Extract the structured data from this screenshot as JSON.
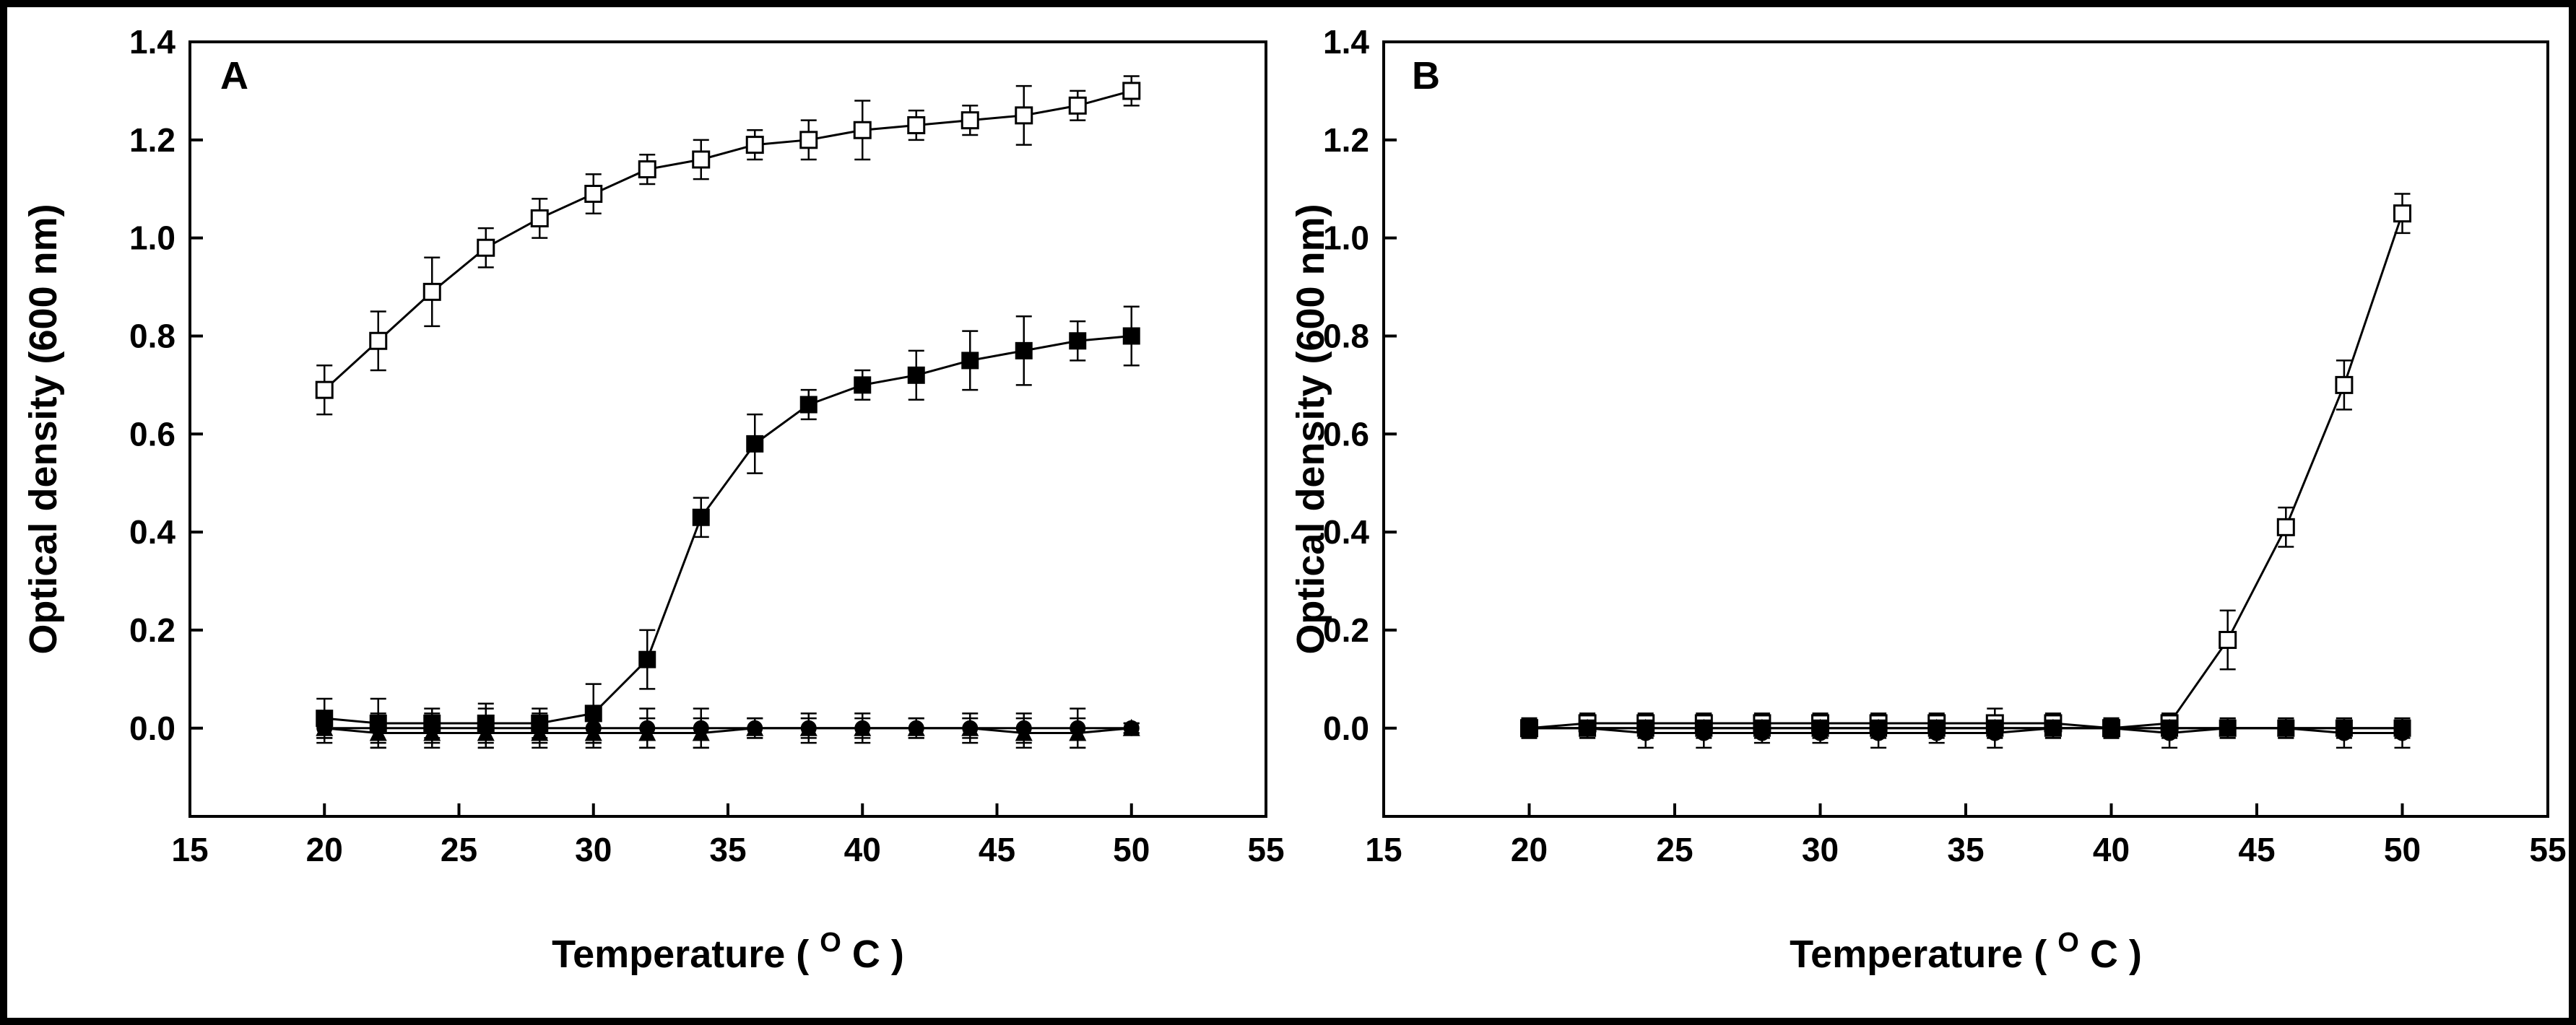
{
  "chart_data": [
    {
      "type": "line",
      "panel_label": "A",
      "xlabel": "Temperature",
      "xlabel_unit_base": "C",
      "xlabel_unit_sup": "O",
      "ylabel": "Optical density (600 nm)",
      "xlim": [
        15,
        55
      ],
      "ylim": [
        -0.18,
        1.4
      ],
      "xticks": [
        15,
        20,
        25,
        30,
        35,
        40,
        45,
        50,
        55
      ],
      "xtick_labels": [
        "15",
        "20",
        "25",
        "30",
        "35",
        "40",
        "45",
        "50",
        "55"
      ],
      "yticks": [
        0.0,
        0.2,
        0.4,
        0.6,
        0.8,
        1.0,
        1.2,
        1.4
      ],
      "ytick_labels": [
        "0.0",
        "0.2",
        "0.4",
        "0.6",
        "0.8",
        "1.0",
        "1.2",
        "1.4"
      ],
      "x": [
        20,
        22,
        24,
        26,
        28,
        30,
        32,
        34,
        36,
        38,
        40,
        42,
        44,
        46,
        48,
        50
      ],
      "series": [
        {
          "name": "open-square",
          "marker": "open-square",
          "values": [
            0.69,
            0.79,
            0.89,
            0.98,
            1.04,
            1.09,
            1.14,
            1.16,
            1.19,
            1.2,
            1.22,
            1.23,
            1.24,
            1.25,
            1.27,
            1.3
          ],
          "errors": [
            0.05,
            0.06,
            0.07,
            0.04,
            0.04,
            0.04,
            0.03,
            0.04,
            0.03,
            0.04,
            0.06,
            0.03,
            0.03,
            0.06,
            0.03,
            0.03
          ]
        },
        {
          "name": "filled-square",
          "marker": "filled-square",
          "values": [
            0.02,
            0.01,
            0.01,
            0.01,
            0.01,
            0.03,
            0.14,
            0.43,
            0.58,
            0.66,
            0.7,
            0.72,
            0.75,
            0.77,
            0.79,
            0.8
          ],
          "errors": [
            0.04,
            0.05,
            0.03,
            0.04,
            0.03,
            0.06,
            0.06,
            0.04,
            0.06,
            0.03,
            0.03,
            0.05,
            0.06,
            0.07,
            0.04,
            0.06
          ]
        },
        {
          "name": "filled-circle",
          "marker": "filled-circle",
          "values": [
            0.0,
            0.0,
            0.0,
            0.0,
            0.0,
            0.0,
            0.0,
            0.0,
            0.0,
            0.0,
            0.0,
            0.0,
            0.0,
            0.0,
            0.0,
            0.0
          ],
          "errors": [
            0.03,
            0.03,
            0.03,
            0.04,
            0.03,
            0.03,
            0.04,
            0.04,
            0.02,
            0.03,
            0.03,
            0.02,
            0.03,
            0.03,
            0.04,
            0.01
          ]
        },
        {
          "name": "filled-triangle",
          "marker": "filled-triangle",
          "values": [
            0.0,
            -0.01,
            -0.01,
            -0.01,
            -0.01,
            -0.01,
            -0.01,
            -0.01,
            0.0,
            0.0,
            0.0,
            0.0,
            0.0,
            -0.01,
            -0.01,
            0.0
          ],
          "errors": [
            0.02,
            0.03,
            0.03,
            0.03,
            0.03,
            0.03,
            0.03,
            0.03,
            0.02,
            0.02,
            0.02,
            0.02,
            0.02,
            0.03,
            0.03,
            0.01
          ]
        }
      ]
    },
    {
      "type": "line",
      "panel_label": "B",
      "xlabel": "Temperature",
      "xlabel_unit_base": "C",
      "xlabel_unit_sup": "O",
      "ylabel": "Optical density (600 nm)",
      "xlim": [
        15,
        55
      ],
      "ylim": [
        -0.18,
        1.4
      ],
      "xticks": [
        15,
        20,
        25,
        30,
        35,
        40,
        45,
        50,
        55
      ],
      "xtick_labels": [
        "15",
        "20",
        "25",
        "30",
        "35",
        "40",
        "45",
        "50",
        "55"
      ],
      "yticks": [
        0.0,
        0.2,
        0.4,
        0.6,
        0.8,
        1.0,
        1.2,
        1.4
      ],
      "ytick_labels": [
        "0.0",
        "0.2",
        "0.4",
        "0.6",
        "0.8",
        "1.0",
        "1.2",
        "1.4"
      ],
      "x": [
        20,
        22,
        24,
        26,
        28,
        30,
        32,
        34,
        36,
        38,
        40,
        42,
        44,
        46,
        48,
        50
      ],
      "series": [
        {
          "name": "open-square",
          "marker": "open-square",
          "values": [
            0.0,
            0.01,
            0.01,
            0.01,
            0.01,
            0.01,
            0.01,
            0.01,
            0.01,
            0.01,
            0.0,
            0.01,
            0.18,
            0.41,
            0.7,
            1.05
          ],
          "errors": [
            0.02,
            0.02,
            0.02,
            0.02,
            0.02,
            0.02,
            0.02,
            0.02,
            0.03,
            0.02,
            0.02,
            0.02,
            0.06,
            0.04,
            0.05,
            0.04
          ]
        },
        {
          "name": "filled-square",
          "marker": "filled-square",
          "values": [
            0.0,
            0.0,
            0.0,
            0.0,
            0.0,
            0.0,
            0.0,
            0.0,
            0.0,
            0.0,
            0.0,
            0.0,
            0.0,
            0.0,
            0.0,
            0.0
          ],
          "errors": [
            0.02,
            0.02,
            0.02,
            0.02,
            0.02,
            0.02,
            0.02,
            0.02,
            0.02,
            0.02,
            0.02,
            0.02,
            0.02,
            0.02,
            0.02,
            0.02
          ]
        },
        {
          "name": "filled-circle",
          "marker": "filled-circle",
          "values": [
            0.0,
            0.0,
            -0.01,
            -0.01,
            -0.01,
            -0.01,
            -0.01,
            -0.01,
            -0.01,
            0.0,
            0.0,
            -0.01,
            0.0,
            0.0,
            -0.01,
            -0.01
          ],
          "errors": [
            0.02,
            0.02,
            0.03,
            0.03,
            0.02,
            0.02,
            0.03,
            0.02,
            0.03,
            0.02,
            0.02,
            0.03,
            0.02,
            0.02,
            0.03,
            0.03
          ]
        },
        {
          "name": "filled-triangle",
          "marker": "filled-triangle",
          "values": [
            0.0,
            0.0,
            0.0,
            0.0,
            0.0,
            0.0,
            0.0,
            0.0,
            0.0,
            0.0,
            0.0,
            0.0,
            0.0,
            0.0,
            0.0,
            0.0
          ],
          "errors": [
            0.01,
            0.01,
            0.01,
            0.01,
            0.01,
            0.01,
            0.01,
            0.01,
            0.01,
            0.01,
            0.01,
            0.01,
            0.01,
            0.01,
            0.01,
            0.01
          ]
        }
      ]
    }
  ]
}
